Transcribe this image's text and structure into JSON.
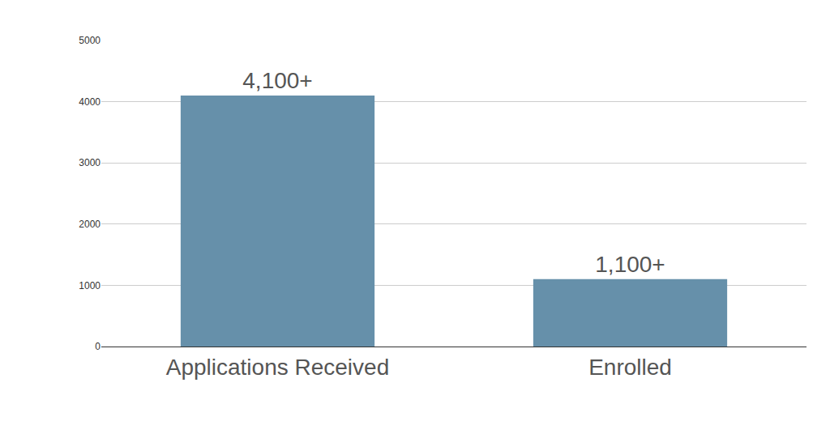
{
  "chart_data": {
    "type": "bar",
    "categories": [
      "Applications Received",
      "Enrolled"
    ],
    "values": [
      4100,
      1100
    ],
    "value_labels": [
      "4,100+",
      "1,100+"
    ],
    "color": "#6690aa",
    "ylim": [
      0,
      5000
    ],
    "yticks": [
      0,
      1000,
      2000,
      3000,
      4000,
      5000
    ],
    "grid": true,
    "data_labels": true
  }
}
